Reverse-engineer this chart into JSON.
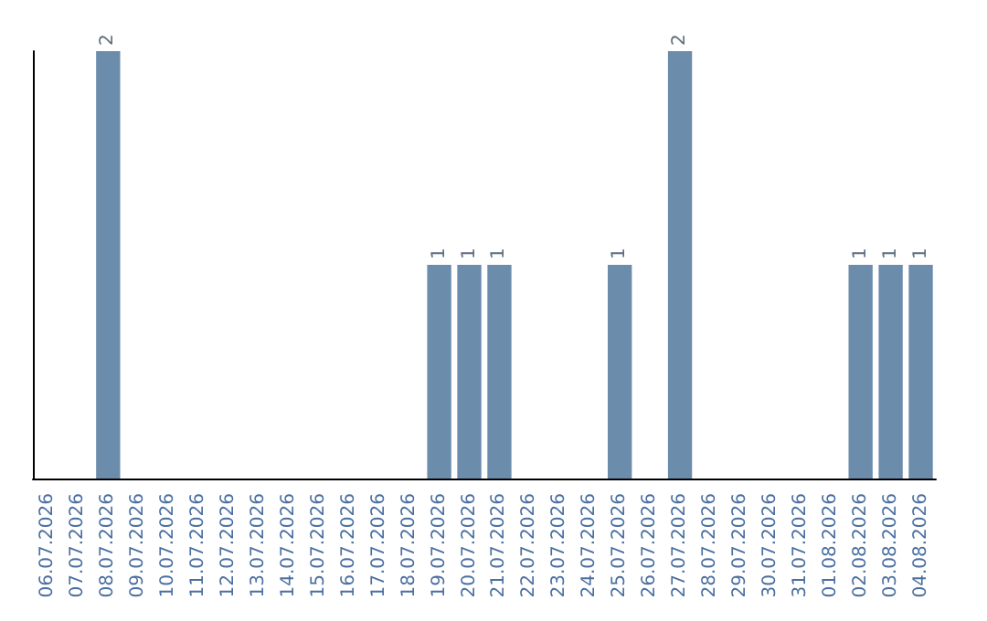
{
  "chart_data": {
    "type": "bar",
    "categories": [
      "06.07.2026",
      "07.07.2026",
      "08.07.2026",
      "09.07.2026",
      "10.07.2026",
      "11.07.2026",
      "12.07.2026",
      "13.07.2026",
      "14.07.2026",
      "15.07.2026",
      "16.07.2026",
      "17.07.2026",
      "18.07.2026",
      "19.07.2026",
      "20.07.2026",
      "21.07.2026",
      "22.07.2026",
      "23.07.2026",
      "24.07.2026",
      "25.07.2026",
      "26.07.2026",
      "27.07.2026",
      "28.07.2026",
      "29.07.2026",
      "30.07.2026",
      "31.07.2026",
      "01.08.2026",
      "02.08.2026",
      "03.08.2026",
      "04.08.2026"
    ],
    "values": [
      0,
      0,
      2,
      0,
      0,
      0,
      0,
      0,
      0,
      0,
      0,
      0,
      0,
      1,
      1,
      1,
      0,
      0,
      0,
      1,
      0,
      2,
      0,
      0,
      0,
      0,
      0,
      1,
      1,
      1
    ],
    "value_labels": [
      null,
      null,
      "2",
      null,
      null,
      null,
      null,
      null,
      null,
      null,
      null,
      null,
      null,
      "1",
      "1",
      "1",
      null,
      null,
      null,
      "1",
      null,
      "2",
      null,
      null,
      null,
      null,
      null,
      "1",
      "1",
      "1"
    ],
    "color": "#6b8cab",
    "grid": false,
    "tick_labels": "x"
  }
}
